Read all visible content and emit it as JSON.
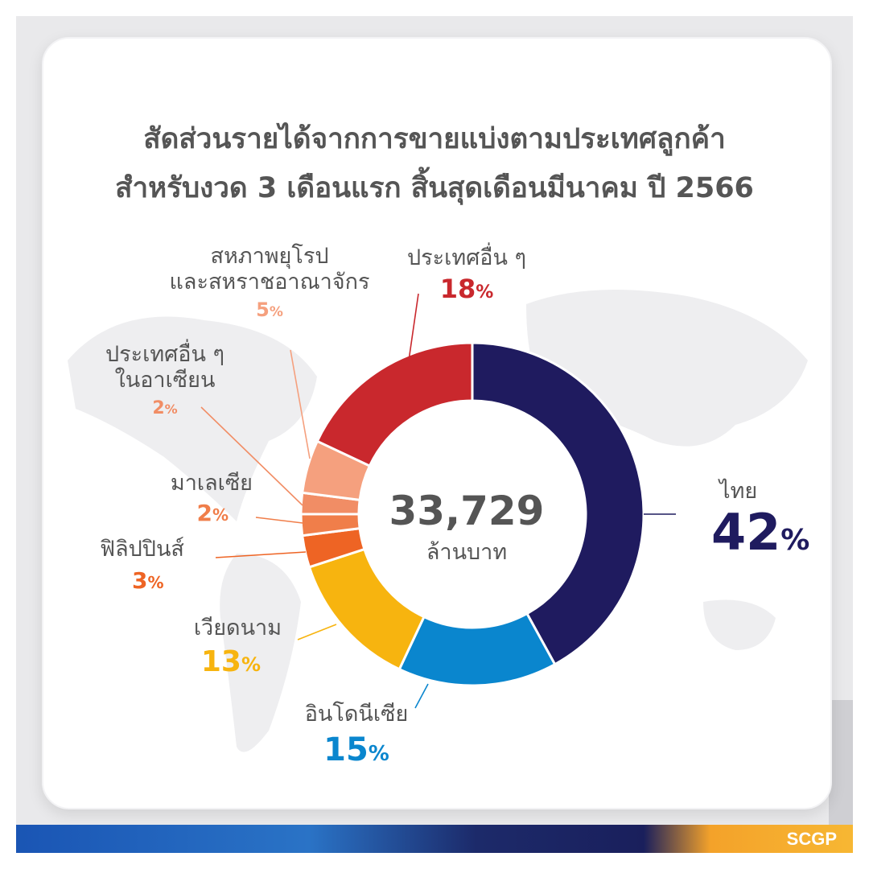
{
  "title_line1": "สัดส่วนรายได้จากการขายแบ่งตามประเทศลูกค้า",
  "title_line2": "สำหรับงวด 3 เดือนแรก สิ้นสุดเดือนมีนาคม ปี 2566",
  "logo": "SCGP",
  "chart_data": {
    "type": "pie",
    "donut": true,
    "center_total": "33,729",
    "center_unit": "ล้านบาท",
    "slices": [
      {
        "key": "thailand",
        "name": "ไทย",
        "value": 42,
        "color": "#1f1b5f"
      },
      {
        "key": "indonesia",
        "name": "อินโดนีเซีย",
        "value": 15,
        "color": "#0a86ce"
      },
      {
        "key": "vietnam",
        "name": "เวียดนาม",
        "value": 13,
        "color": "#f7b40f"
      },
      {
        "key": "philippines",
        "name": "ฟิลิปปินส์",
        "value": 3,
        "color": "#ee6424"
      },
      {
        "key": "malaysia",
        "name": "มาเลเซีย",
        "value": 2,
        "color": "#f07e4a"
      },
      {
        "key": "other_asean",
        "name": "ประเทศอื่น ๆ ในอาเซียน",
        "value": 2,
        "color": "#f18d65"
      },
      {
        "key": "eu_uk",
        "name": "สหภาพยุโรป และสหราชอาณาจักร",
        "value": 5,
        "color": "#f5a07e"
      },
      {
        "key": "others",
        "name": "ประเทศอื่น ๆ",
        "value": 18,
        "color": "#c9282d"
      }
    ],
    "labels": {
      "thailand": {
        "line1": "ไทย",
        "pct": "42"
      },
      "indonesia": {
        "line1": "อินโดนีเซีย",
        "pct": "15"
      },
      "vietnam": {
        "line1": "เวียดนาม",
        "pct": "13"
      },
      "philippines": {
        "line1": "ฟิลิปปินส์",
        "pct": "3"
      },
      "malaysia": {
        "line1": "มาเลเซีย",
        "pct": "2"
      },
      "other_asean": {
        "line1": "ประเทศอื่น ๆ",
        "line2": "ในอาเซียน",
        "pct": "2"
      },
      "eu_uk": {
        "line1": "สหภาพยุโรป",
        "line2": "และสหราชอาณาจักร",
        "pct": "5"
      },
      "others": {
        "line1": "ประเทศอื่น ๆ",
        "pct": "18"
      }
    },
    "percent_sign": "%"
  }
}
